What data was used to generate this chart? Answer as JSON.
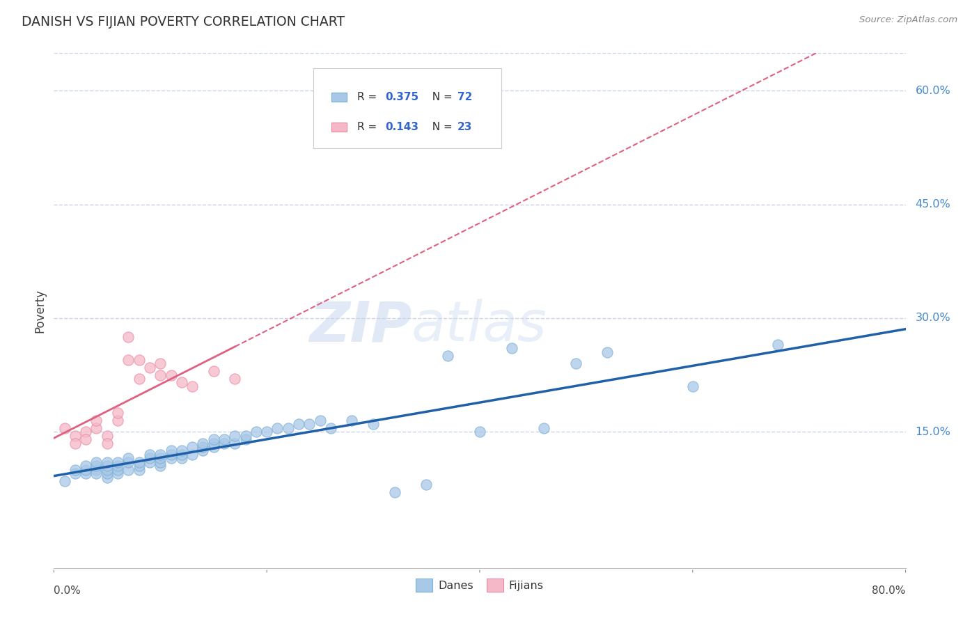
{
  "title": "DANISH VS FIJIAN POVERTY CORRELATION CHART",
  "source": "Source: ZipAtlas.com",
  "ylabel": "Poverty",
  "xlim": [
    0.0,
    0.8
  ],
  "ylim": [
    -0.03,
    0.65
  ],
  "danes_color": "#a8c8e8",
  "danes_edge_color": "#7aafd4",
  "fijians_color": "#f5b8c8",
  "fijians_edge_color": "#e888a0",
  "danes_line_color": "#2060a8",
  "fijians_line_color": "#e06080",
  "danes_R": 0.375,
  "danes_N": 72,
  "fijians_R": 0.143,
  "fijians_N": 23,
  "danes_x": [
    0.01,
    0.02,
    0.02,
    0.03,
    0.03,
    0.03,
    0.04,
    0.04,
    0.04,
    0.04,
    0.05,
    0.05,
    0.05,
    0.05,
    0.05,
    0.06,
    0.06,
    0.06,
    0.06,
    0.07,
    0.07,
    0.07,
    0.08,
    0.08,
    0.08,
    0.09,
    0.09,
    0.09,
    0.1,
    0.1,
    0.1,
    0.1,
    0.11,
    0.11,
    0.11,
    0.12,
    0.12,
    0.12,
    0.13,
    0.13,
    0.14,
    0.14,
    0.14,
    0.15,
    0.15,
    0.15,
    0.16,
    0.16,
    0.17,
    0.17,
    0.18,
    0.18,
    0.19,
    0.2,
    0.21,
    0.22,
    0.23,
    0.24,
    0.25,
    0.26,
    0.28,
    0.3,
    0.32,
    0.35,
    0.37,
    0.4,
    0.43,
    0.46,
    0.49,
    0.52,
    0.6,
    0.68
  ],
  "danes_y": [
    0.085,
    0.095,
    0.1,
    0.095,
    0.1,
    0.105,
    0.1,
    0.095,
    0.105,
    0.11,
    0.09,
    0.095,
    0.1,
    0.105,
    0.11,
    0.095,
    0.1,
    0.105,
    0.11,
    0.1,
    0.11,
    0.115,
    0.1,
    0.105,
    0.11,
    0.11,
    0.115,
    0.12,
    0.105,
    0.11,
    0.115,
    0.12,
    0.115,
    0.12,
    0.125,
    0.115,
    0.12,
    0.125,
    0.12,
    0.13,
    0.125,
    0.13,
    0.135,
    0.13,
    0.135,
    0.14,
    0.135,
    0.14,
    0.135,
    0.145,
    0.14,
    0.145,
    0.15,
    0.15,
    0.155,
    0.155,
    0.16,
    0.16,
    0.165,
    0.155,
    0.165,
    0.16,
    0.07,
    0.08,
    0.25,
    0.15,
    0.26,
    0.155,
    0.24,
    0.255,
    0.21,
    0.265
  ],
  "fijians_x": [
    0.01,
    0.02,
    0.02,
    0.03,
    0.03,
    0.04,
    0.04,
    0.05,
    0.05,
    0.06,
    0.06,
    0.07,
    0.07,
    0.08,
    0.08,
    0.09,
    0.1,
    0.1,
    0.11,
    0.12,
    0.13,
    0.15,
    0.17
  ],
  "fijians_y": [
    0.155,
    0.145,
    0.135,
    0.15,
    0.14,
    0.155,
    0.165,
    0.145,
    0.135,
    0.165,
    0.175,
    0.245,
    0.275,
    0.22,
    0.245,
    0.235,
    0.225,
    0.24,
    0.225,
    0.215,
    0.21,
    0.23,
    0.22
  ],
  "grid_color": "#c8d4e8",
  "background_color": "#ffffff",
  "watermark": "ZIPatlas",
  "ytick_vals": [
    0.15,
    0.3,
    0.45,
    0.6
  ],
  "ytick_labels": [
    "15.0%",
    "30.0%",
    "45.0%",
    "60.0%"
  ],
  "xtick_vals": [
    0.0,
    0.2,
    0.4,
    0.6,
    0.8
  ],
  "xtick_labels": [
    "0.0%",
    "",
    "",
    "",
    "80.0%"
  ]
}
